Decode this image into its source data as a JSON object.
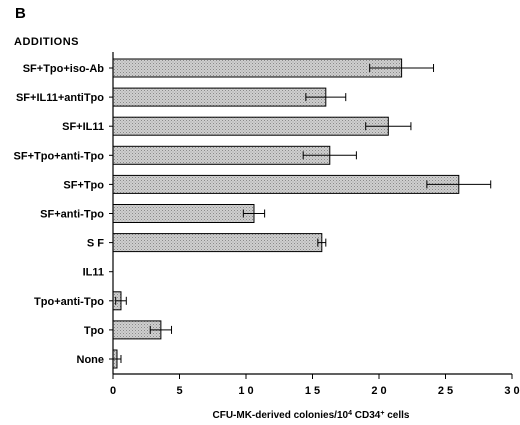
{
  "panel_letter": "B",
  "chart_data": {
    "type": "bar",
    "orientation": "horizontal",
    "group_title": "ADDITIONS",
    "categories": [
      "SF+Tpo+iso-Ab",
      "SF+IL11+antiTpo",
      "SF+IL11",
      "SF+Tpo+anti-Tpo",
      "SF+Tpo",
      "SF+anti-Tpo",
      "S F",
      "IL11",
      "Tpo+anti-Tpo",
      "Tpo",
      "None"
    ],
    "values": [
      21.7,
      16.0,
      20.7,
      16.3,
      26.0,
      10.6,
      15.7,
      0,
      0.6,
      3.6,
      0.3
    ],
    "errors": [
      2.4,
      1.5,
      1.7,
      2.0,
      2.4,
      0.8,
      0.3,
      0,
      0.4,
      0.8,
      0.3
    ],
    "xlim": [
      0,
      30
    ],
    "xticks": [
      0,
      5,
      10,
      15,
      20,
      25,
      30
    ],
    "xtick_labels": [
      "0",
      "5",
      "1 0",
      "1 5",
      "2 0",
      "2 5",
      "3 0"
    ],
    "xlabel_prefix": "CFU-MK-derived  colonies/10",
    "xlabel_sup": "4",
    "xlabel_mid": "  CD34",
    "xlabel_sup2": "+",
    "xlabel_suffix": "  cells",
    "bar_color": "#c4c4c4",
    "grid": false
  }
}
